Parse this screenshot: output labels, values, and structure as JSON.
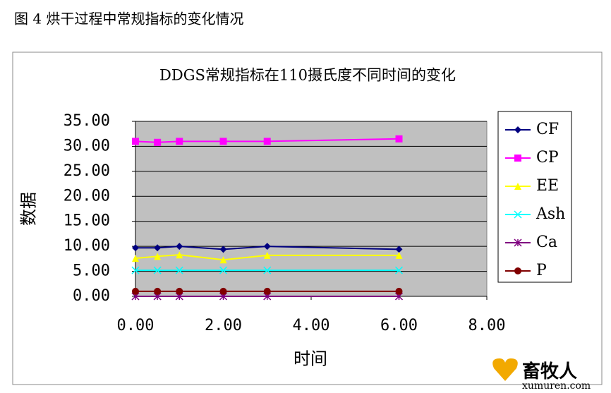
{
  "caption": "图 4  烘干过程中常规指标的变化情况",
  "watermark": {
    "name": "畜牧人",
    "url": "xumuren.com"
  },
  "chart_data": {
    "type": "line",
    "title": "DDGS常规指标在110摄氏度不同时间的变化",
    "x_label": "时间",
    "y_label": "数据",
    "x": [
      0,
      0.5,
      1,
      2,
      3,
      6
    ],
    "xlim": [
      0,
      8
    ],
    "xticks": [
      {
        "value": 0,
        "label": "0.00"
      },
      {
        "value": 2,
        "label": "2.00"
      },
      {
        "value": 4,
        "label": "4.00"
      },
      {
        "value": 6,
        "label": "6.00"
      },
      {
        "value": 8,
        "label": "8.00"
      }
    ],
    "ylim": [
      0,
      35
    ],
    "yticks": [
      {
        "value": 0,
        "label": "0.00"
      },
      {
        "value": 5,
        "label": "5.00"
      },
      {
        "value": 10,
        "label": "10.00"
      },
      {
        "value": 15,
        "label": "15.00"
      },
      {
        "value": 20,
        "label": "20.00"
      },
      {
        "value": 25,
        "label": "25.00"
      },
      {
        "value": 30,
        "label": "30.00"
      },
      {
        "value": 35,
        "label": "35.00"
      }
    ],
    "grid": true,
    "legend": "right",
    "series": [
      {
        "name": "CF",
        "color": "#000080",
        "marker": "diamond",
        "values": [
          9.7,
          9.7,
          10.0,
          9.4,
          10.0,
          9.4
        ]
      },
      {
        "name": "CP",
        "color": "#ff00ff",
        "marker": "square",
        "values": [
          31.0,
          30.8,
          31.0,
          31.0,
          31.0,
          31.5
        ]
      },
      {
        "name": "EE",
        "color": "#ffff00",
        "marker": "triangle",
        "values": [
          7.6,
          8.0,
          8.3,
          7.3,
          8.2,
          8.2
        ]
      },
      {
        "name": "Ash",
        "color": "#00ffff",
        "marker": "x",
        "values": [
          5.2,
          5.2,
          5.2,
          5.2,
          5.2,
          5.2
        ]
      },
      {
        "name": "Ca",
        "color": "#800080",
        "marker": "star",
        "values": [
          0,
          0,
          0,
          0,
          0,
          0
        ]
      },
      {
        "name": "P",
        "color": "#800000",
        "marker": "circle",
        "values": [
          1.0,
          1.0,
          1.0,
          1.0,
          1.0,
          1.0
        ]
      }
    ]
  }
}
